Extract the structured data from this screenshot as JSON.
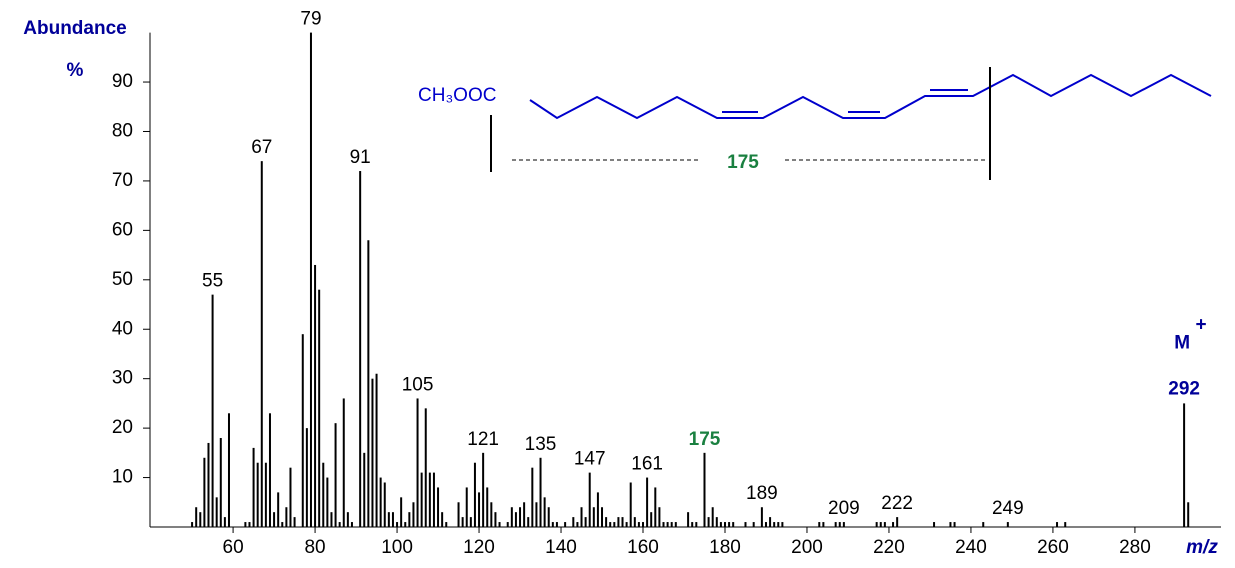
{
  "chart_data": {
    "type": "bar",
    "y_label": "Abundance",
    "y_unit": "%",
    "x_label": "m/z",
    "color": "#000000",
    "x": [
      50,
      51,
      52,
      53,
      54,
      55,
      56,
      57,
      58,
      59,
      63,
      64,
      65,
      66,
      67,
      68,
      69,
      70,
      71,
      72,
      73,
      74,
      75,
      77,
      78,
      79,
      80,
      81,
      82,
      83,
      84,
      85,
      86,
      87,
      88,
      89,
      91,
      92,
      93,
      94,
      95,
      96,
      97,
      98,
      99,
      100,
      101,
      102,
      103,
      104,
      105,
      106,
      107,
      108,
      109,
      110,
      111,
      112,
      115,
      116,
      117,
      118,
      119,
      120,
      121,
      122,
      123,
      124,
      125,
      127,
      128,
      129,
      130,
      131,
      132,
      133,
      134,
      135,
      136,
      137,
      138,
      139,
      141,
      143,
      144,
      145,
      146,
      147,
      148,
      149,
      150,
      151,
      152,
      153,
      154,
      155,
      156,
      157,
      158,
      159,
      160,
      161,
      162,
      163,
      164,
      165,
      166,
      167,
      168,
      171,
      172,
      173,
      175,
      176,
      177,
      178,
      179,
      180,
      181,
      182,
      185,
      187,
      189,
      190,
      191,
      192,
      193,
      194,
      203,
      204,
      207,
      208,
      209,
      217,
      218,
      219,
      221,
      222,
      231,
      235,
      236,
      243,
      249,
      261,
      263,
      292,
      293
    ],
    "values": [
      1,
      4,
      3,
      14,
      17,
      47,
      6,
      18,
      2,
      23,
      1,
      1,
      16,
      13,
      74,
      13,
      23,
      3,
      7,
      1,
      4,
      12,
      2,
      39,
      20,
      100,
      53,
      48,
      13,
      10,
      3,
      21,
      1,
      26,
      3,
      1,
      72,
      15,
      58,
      30,
      31,
      10,
      9,
      3,
      3,
      1,
      6,
      1,
      3,
      5,
      26,
      11,
      24,
      11,
      11,
      8,
      3,
      1,
      5,
      2,
      8,
      2,
      13,
      7,
      15,
      8,
      5,
      3,
      1,
      1,
      4,
      3,
      4,
      5,
      2,
      12,
      5,
      14,
      6,
      4,
      1,
      1,
      1,
      2,
      1,
      4,
      2,
      11,
      4,
      7,
      4,
      2,
      1,
      1,
      2,
      2,
      1,
      9,
      2,
      1,
      1,
      10,
      3,
      8,
      4,
      1,
      1,
      1,
      1,
      3,
      1,
      1,
      15,
      2,
      4,
      2,
      1,
      1,
      1,
      1,
      1,
      1,
      4,
      1,
      2,
      1,
      1,
      1,
      1,
      1,
      1,
      1,
      1,
      1,
      1,
      1,
      1,
      2,
      1,
      1,
      1,
      1,
      1,
      1,
      1,
      25,
      5
    ],
    "xlim": [
      39,
      301
    ],
    "ylim": [
      0,
      100
    ],
    "xticks": [
      60,
      80,
      100,
      120,
      140,
      160,
      180,
      200,
      220,
      240,
      260,
      280
    ],
    "yticks": [
      10,
      20,
      30,
      40,
      50,
      60,
      70,
      80,
      90
    ],
    "peak_labels": [
      55,
      67,
      79,
      91,
      105,
      121,
      135,
      147,
      161,
      189,
      209,
      222,
      249
    ],
    "fragment": {
      "label": 175,
      "color": "#1a8040"
    },
    "molecular_ion": {
      "label": "M",
      "charge": "+",
      "value": 292,
      "color": "#000099"
    },
    "structure": {
      "formula": "CH₃OOC",
      "fragment_label": 175,
      "color": "#0000cc"
    }
  }
}
